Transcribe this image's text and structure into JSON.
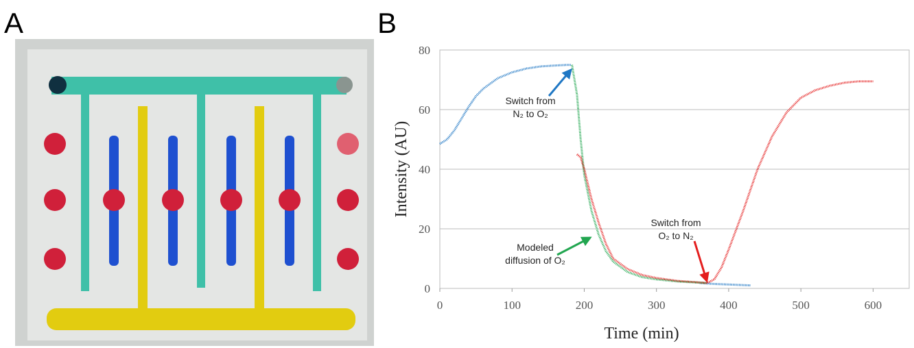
{
  "panel_a": {
    "label": "A"
  },
  "chart_data": {
    "type": "line",
    "panel_label": "B",
    "x_label": "Time (min)",
    "y_label": "Intensity (AU)",
    "xlim": [
      0,
      650
    ],
    "xticks": [
      0,
      100,
      200,
      300,
      400,
      500,
      600
    ],
    "ylim": [
      0,
      80
    ],
    "yticks": [
      0,
      20,
      40,
      60,
      80
    ],
    "grid": true,
    "series": [
      {
        "color": "#1f77c4",
        "x": [
          0,
          10,
          20,
          30,
          40,
          50,
          60,
          80,
          100,
          120,
          140,
          160,
          175,
          182,
          null,
          360,
          380,
          400,
          430
        ],
        "values": [
          48.5,
          50,
          53,
          57,
          61,
          64.5,
          67,
          70.5,
          72.5,
          73.8,
          74.5,
          74.8,
          75,
          75,
          null,
          1.8,
          1.5,
          1.3,
          1.0
        ]
      },
      {
        "color": "#22a650",
        "x": [
          183,
          190,
          195,
          200,
          210,
          220,
          230,
          240,
          260,
          280,
          300,
          330,
          370
        ],
        "values": [
          75,
          65,
          50,
          38,
          26,
          18,
          12.5,
          9,
          5.5,
          3.8,
          3,
          2.3,
          1.8
        ]
      },
      {
        "color": "#e41e1e",
        "x": [
          190,
          195,
          200,
          210,
          220,
          230,
          240,
          260,
          280,
          300,
          330,
          360,
          370,
          380,
          390,
          400,
          420,
          440,
          460,
          480,
          500,
          520,
          540,
          560,
          580,
          600
        ],
        "values": [
          45,
          44,
          40,
          30,
          22,
          15,
          10,
          6.5,
          4.5,
          3.5,
          2.5,
          2,
          1.8,
          3,
          7,
          13,
          26,
          40,
          51,
          59,
          64,
          66.5,
          68,
          69,
          69.5,
          69.5
        ]
      }
    ],
    "annotations": [
      {
        "lines": [
          "Switch from",
          "N₂ to O₂"
        ]
      },
      {
        "lines": [
          "Modeled",
          "diffusion of O₂"
        ]
      },
      {
        "lines": [
          "Switch from",
          "O₂  to N₂"
        ]
      }
    ]
  }
}
